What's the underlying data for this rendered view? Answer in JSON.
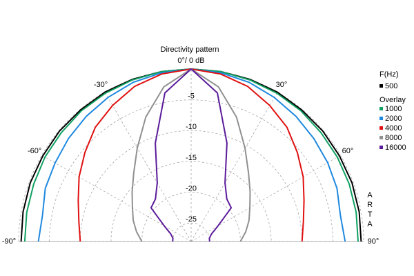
{
  "chart_data": {
    "type": "polar",
    "title": "Directivity pattern",
    "legend_title": "F(Hz)",
    "overlay_label": "Overlay",
    "watermark": "ARTA",
    "theta": [
      -90,
      -80,
      -70,
      -60,
      -50,
      -40,
      -30,
      -20,
      -10,
      0,
      10,
      20,
      30,
      40,
      50,
      60,
      70,
      80,
      90
    ],
    "thetalim": [
      -90,
      90
    ],
    "thetaticks": [
      {
        "value": -90,
        "label": "-90°"
      },
      {
        "value": -60,
        "label": "-60°"
      },
      {
        "value": -30,
        "label": "-30°"
      },
      {
        "value": 0,
        "label": "0°/ 0 dB"
      },
      {
        "value": 30,
        "label": "30°"
      },
      {
        "value": 60,
        "label": "60°"
      },
      {
        "value": 90,
        "label": "90°"
      }
    ],
    "rlim": [
      -28,
      0
    ],
    "rticks": [
      -25,
      -20,
      -15,
      -10,
      -5
    ],
    "grid": true,
    "series": [
      {
        "name": "500",
        "color": "#000000",
        "values": [
          -0.4,
          -0.3,
          -0.2,
          -0.2,
          -0.1,
          -0.1,
          0,
          0,
          0,
          0,
          0,
          0,
          0,
          -0.1,
          -0.1,
          -0.2,
          -0.2,
          -0.3,
          -0.4
        ]
      },
      {
        "name": "1000",
        "color": "#10a060",
        "values": [
          -1,
          -0.9,
          -0.8,
          -0.6,
          -0.5,
          -0.3,
          -0.2,
          -0.1,
          0,
          0,
          0,
          -0.1,
          -0.2,
          -0.3,
          -0.5,
          -0.6,
          -0.7,
          -0.8,
          -0.9
        ]
      },
      {
        "name": "2000",
        "color": "#1e88e0",
        "values": [
          -3.2,
          -3.5,
          -2.8,
          -2.5,
          -2,
          -1.5,
          -1,
          -0.5,
          -0.2,
          0,
          -0.2,
          -0.5,
          -1,
          -1.5,
          -2,
          -2.4,
          -2.8,
          -3.4,
          -3
        ]
      },
      {
        "name": "4000",
        "color": "#e01010",
        "values": [
          -10,
          -9.5,
          -8.5,
          -7,
          -5.5,
          -3.8,
          -2.5,
          -1.2,
          -0.4,
          0,
          -0.4,
          -1.2,
          -2.5,
          -3.8,
          -5.5,
          -7,
          -8.5,
          -9.5,
          -10
        ]
      },
      {
        "name": "8000",
        "color": "#909090",
        "values": [
          -20,
          -19,
          -18,
          -17,
          -15.5,
          -13.5,
          -10.5,
          -6.5,
          -2.5,
          0,
          -2.5,
          -6.5,
          -10.5,
          -13.5,
          -15.5,
          -17,
          -18,
          -19,
          -20
        ]
      },
      {
        "name": "16000",
        "color": "#5a1a9a",
        "values": [
          -25,
          -25,
          -24.5,
          -23,
          -19.5,
          -19,
          -17,
          -11,
          -3.5,
          0,
          -3.5,
          -11,
          -17,
          -19,
          -19.5,
          -23,
          -24.5,
          -25,
          -25
        ]
      }
    ]
  }
}
